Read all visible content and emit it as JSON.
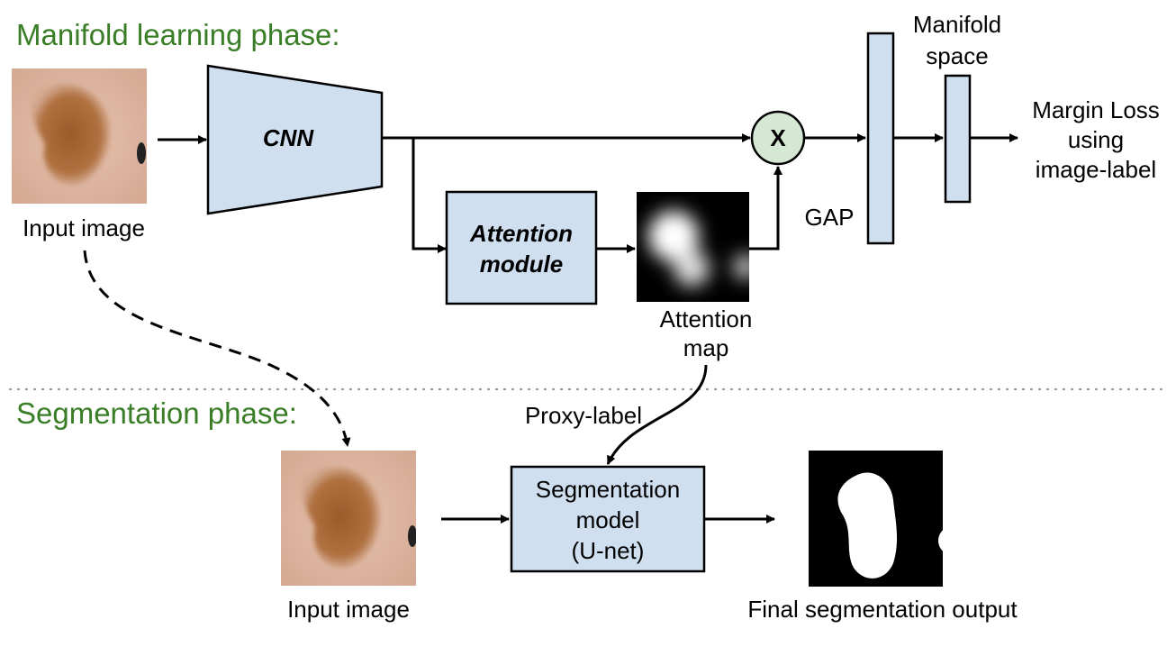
{
  "phases": {
    "manifold": "Manifold learning phase:",
    "segmentation": "Segmentation phase:"
  },
  "nodes": {
    "cnn": "CNN",
    "attention_line1": "Attention",
    "attention_line2": "module",
    "multiply": "X",
    "gap": "GAP",
    "manifold_line1": "Manifold",
    "manifold_line2": "space",
    "margin_line1": "Margin Loss",
    "margin_line2": "using",
    "margin_line3": "image-label",
    "seg_line1": "Segmentation",
    "seg_line2": "model",
    "seg_line3": "(U-net)"
  },
  "labels": {
    "input_image_top": "Input image",
    "input_image_bottom": "Input image",
    "attention_map_line1": "Attention",
    "attention_map_line2": "map",
    "proxy_label": "Proxy-label",
    "final_output": "Final segmentation output"
  },
  "colors": {
    "phase_title": "#3a7d27",
    "box_fill": "#cfdff0",
    "multiply_fill": "#d5e8d4",
    "multiply_stroke": "#82b366",
    "line": "#000000"
  }
}
